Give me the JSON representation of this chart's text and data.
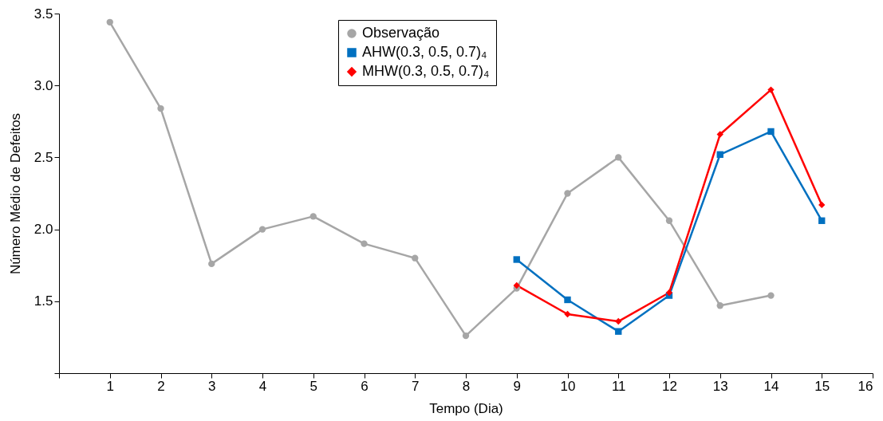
{
  "chart_data": {
    "type": "line",
    "xlabel": "Tempo (Dia)",
    "ylabel": "Número Médio de Defeitos",
    "xlim": [
      0,
      16
    ],
    "xticks": [
      {
        "value": 0,
        "label": null
      },
      1,
      2,
      3,
      4,
      5,
      6,
      7,
      8,
      9,
      10,
      11,
      12,
      13,
      14,
      15,
      16
    ],
    "ylim": [
      1.0,
      3.5
    ],
    "yticks": [
      {
        "value": 1.0,
        "label": null
      },
      1.5,
      {
        "value": 2,
        "label": "2.0"
      },
      2.5,
      {
        "value": 3,
        "label": "3.0"
      },
      3.5
    ],
    "grid": false,
    "legend": "top",
    "line_style": "solid",
    "series": [
      {
        "name": "Observação",
        "color": "#a6a6a6",
        "marker": "circle",
        "x": [
          1,
          2,
          3,
          4,
          5,
          6,
          7,
          8,
          9,
          10,
          11,
          12,
          13,
          14
        ],
        "values": [
          3.44,
          2.84,
          1.76,
          2.0,
          2.09,
          1.9,
          1.8,
          1.26,
          1.59,
          2.25,
          2.5,
          2.06,
          1.47,
          1.54
        ]
      },
      {
        "name": "AHW(0.3, 0.5, 0.7)₄",
        "color": "#0070c0",
        "marker": "square",
        "x": [
          9,
          10,
          11,
          12,
          13,
          14,
          15
        ],
        "values": [
          1.79,
          1.51,
          1.29,
          1.54,
          2.52,
          2.68,
          2.06
        ]
      },
      {
        "name": "MHW(0.3, 0.5, 0.7)₄",
        "color": "#ff0000",
        "marker": "diamond",
        "x": [
          9,
          10,
          11,
          12,
          13,
          14,
          15
        ],
        "values": [
          1.61,
          1.41,
          1.36,
          1.56,
          2.66,
          2.97,
          2.17
        ]
      }
    ]
  }
}
